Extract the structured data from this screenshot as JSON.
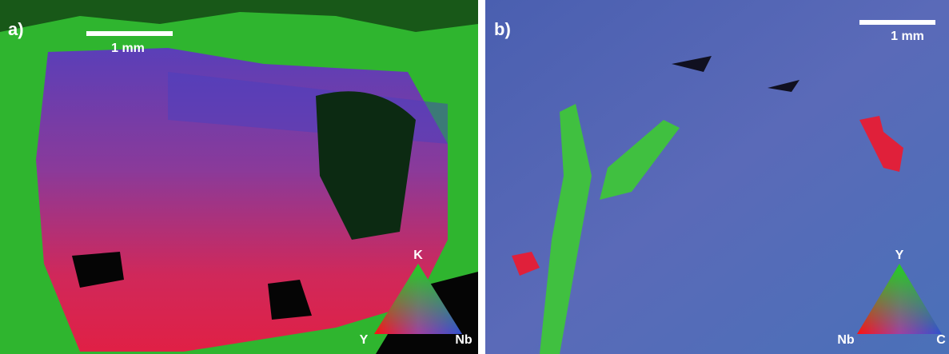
{
  "panels": [
    {
      "label": "a)",
      "scale_bar": "1 mm",
      "triangle": {
        "top": "K",
        "left": "Y",
        "right": "Nb"
      }
    },
    {
      "label": "b)",
      "scale_bar": "1 mm",
      "triangle": {
        "top": "Y",
        "left": "Nb",
        "right": "C"
      }
    }
  ]
}
